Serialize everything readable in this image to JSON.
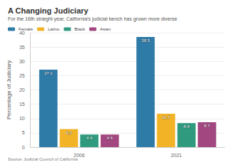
{
  "chart_data": {
    "type": "bar",
    "title": "A Changing Judiciary",
    "subtitle": "For the 16th straight year, California's judicial bench has grown more diverse",
    "y_label": "Percentage of Judiciary",
    "source": "Source: Judicial Council of California",
    "categories": [
      "2006",
      "2021"
    ],
    "series": [
      {
        "name": "Female",
        "color": "#2f7ba8",
        "values": [
          27.1,
          38.5
        ]
      },
      {
        "name": "Latino",
        "color": "#f2b327",
        "values": [
          6.3,
          11.7
        ]
      },
      {
        "name": "Black",
        "color": "#2f9a7e",
        "values": [
          4.4,
          8.4
        ]
      },
      {
        "name": "Asian",
        "color": "#a2477f",
        "values": [
          4.4,
          8.7
        ]
      }
    ],
    "ylim": [
      0,
      40
    ],
    "yticks": [
      0,
      5,
      10,
      15,
      20,
      25,
      30,
      35,
      40
    ],
    "grid": true,
    "legend": "top-left",
    "data_labels": true
  }
}
